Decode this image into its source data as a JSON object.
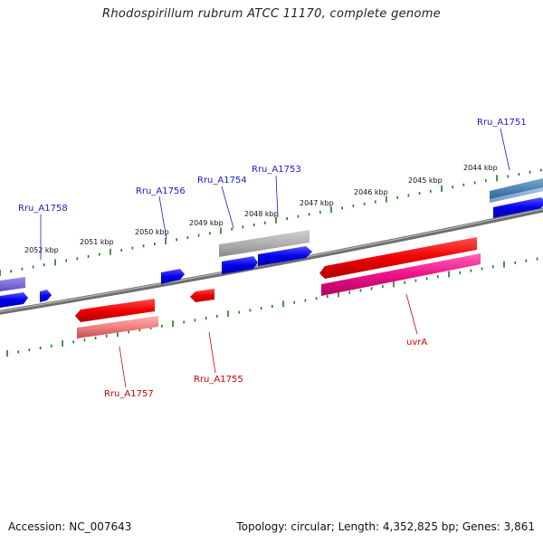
{
  "title": "Rhodospirillum rubrum ATCC 11170, complete genome",
  "accession": "Accession: NC_007643",
  "topology": "Topology: circular; Length: 4,352,825 bp; Genes: 3,861",
  "colors": {
    "forward_label": "#1a1acc",
    "reverse_label": "#cc0000",
    "ticks": "#1a7a1a",
    "backbone": "#808080"
  },
  "scale_labels": [
    "2044 kbp",
    "2045 kbp",
    "2046 kbp",
    "2047 kbp",
    "2048 kbp",
    "2049 kbp",
    "2050 kbp",
    "2051 kbp",
    "2052 kbp"
  ],
  "genes": [
    {
      "id": "Rru_A1751",
      "strand": "forward",
      "color": "#4a7fb0"
    },
    {
      "id": "Rru_A1753",
      "strand": "forward",
      "color": "#b0b0b0"
    },
    {
      "id": "Rru_A1754",
      "strand": "forward",
      "color": "#0000ee"
    },
    {
      "id": "Rru_A1756",
      "strand": "forward",
      "color": "#0000ee"
    },
    {
      "id": "Rru_A1758",
      "strand": "forward",
      "color": "#0000ee"
    },
    {
      "id": "uvrA",
      "strand": "reverse",
      "color": "#ee0000"
    },
    {
      "id": "Rru_A1755",
      "strand": "reverse",
      "color": "#ee0000"
    },
    {
      "id": "Rru_A1757",
      "strand": "reverse",
      "color": "#ee0000"
    }
  ]
}
